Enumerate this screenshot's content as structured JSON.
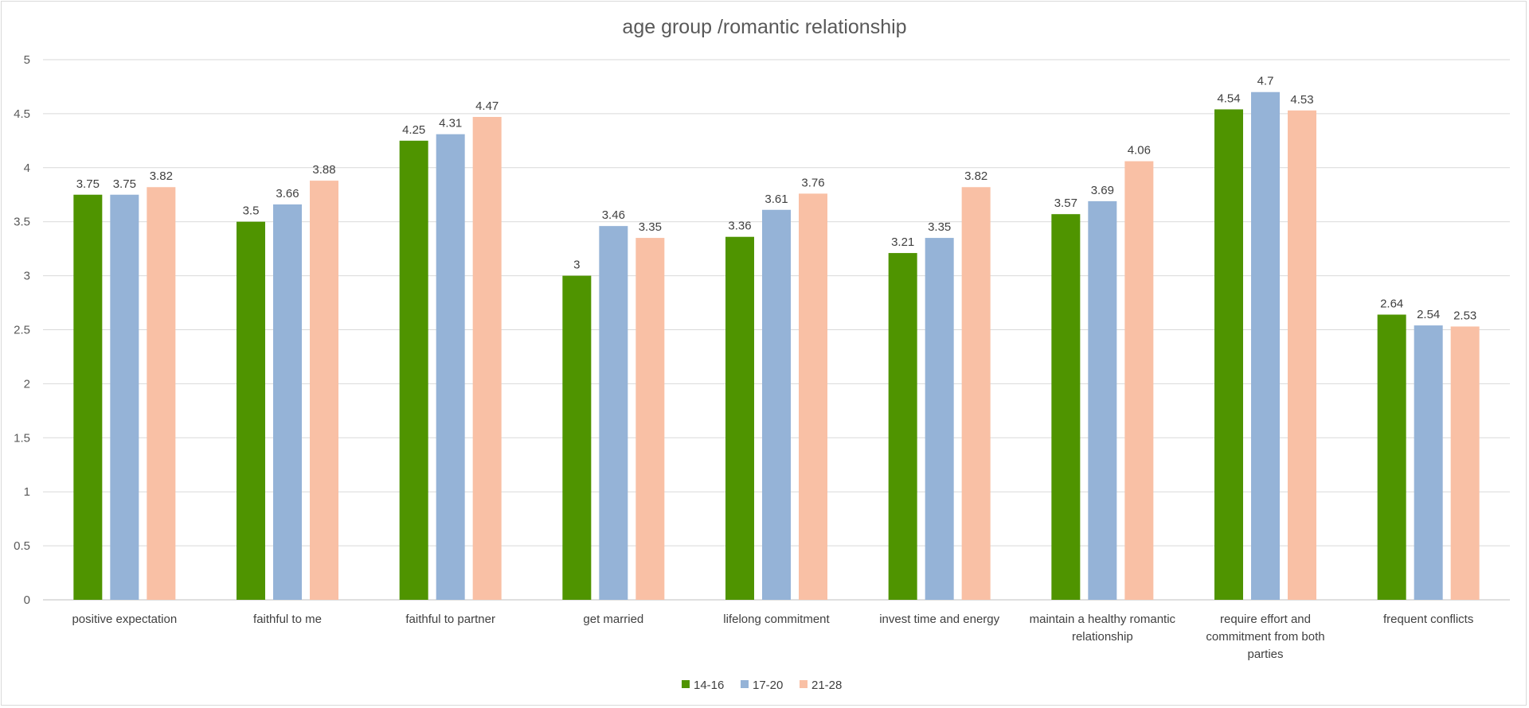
{
  "chart_data": {
    "type": "bar",
    "title": "age group /romantic relationship",
    "xlabel": "",
    "ylabel": "",
    "ylim": [
      0,
      5
    ],
    "yticks": [
      "0",
      "0.5",
      "1",
      "1.5",
      "2",
      "2.5",
      "3",
      "3.5",
      "4",
      "4.5",
      "5"
    ],
    "grid": true,
    "legend_position": "bottom",
    "categories": [
      [
        "positive expectation"
      ],
      [
        "faithful to me"
      ],
      [
        "faithful to partner"
      ],
      [
        "get married"
      ],
      [
        "lifelong commitment"
      ],
      [
        "invest time and energy"
      ],
      [
        "maintain a healthy romantic",
        "relationship"
      ],
      [
        "require effort and",
        "commitment from both",
        "parties"
      ],
      [
        "frequent conflicts"
      ]
    ],
    "series": [
      {
        "name": "14-16",
        "color": "#4f9400",
        "values": [
          3.75,
          3.5,
          4.25,
          3,
          3.36,
          3.21,
          3.57,
          4.54,
          2.64
        ],
        "labels": [
          "3.75",
          "3.5",
          "4.25",
          "3",
          "3.36",
          "3.21",
          "3.57",
          "4.54",
          "2.64"
        ]
      },
      {
        "name": "17-20",
        "color": "#95b3d7",
        "values": [
          3.75,
          3.66,
          4.31,
          3.46,
          3.61,
          3.35,
          3.69,
          4.7,
          2.54
        ],
        "labels": [
          "3.75",
          "3.66",
          "4.31",
          "3.46",
          "3.61",
          "3.35",
          "3.69",
          "4.7",
          "2.54"
        ]
      },
      {
        "name": "21-28",
        "color": "#f9c0a5",
        "values": [
          3.82,
          3.88,
          4.47,
          3.35,
          3.76,
          3.82,
          4.06,
          4.53,
          2.53
        ],
        "labels": [
          "3.82",
          "3.88",
          "4.47",
          "3.35",
          "3.76",
          "3.82",
          "4.06",
          "4.53",
          "2.53"
        ]
      }
    ]
  },
  "colors": {
    "grid": "#d9d9d9",
    "axis": "#bfbfbf"
  }
}
